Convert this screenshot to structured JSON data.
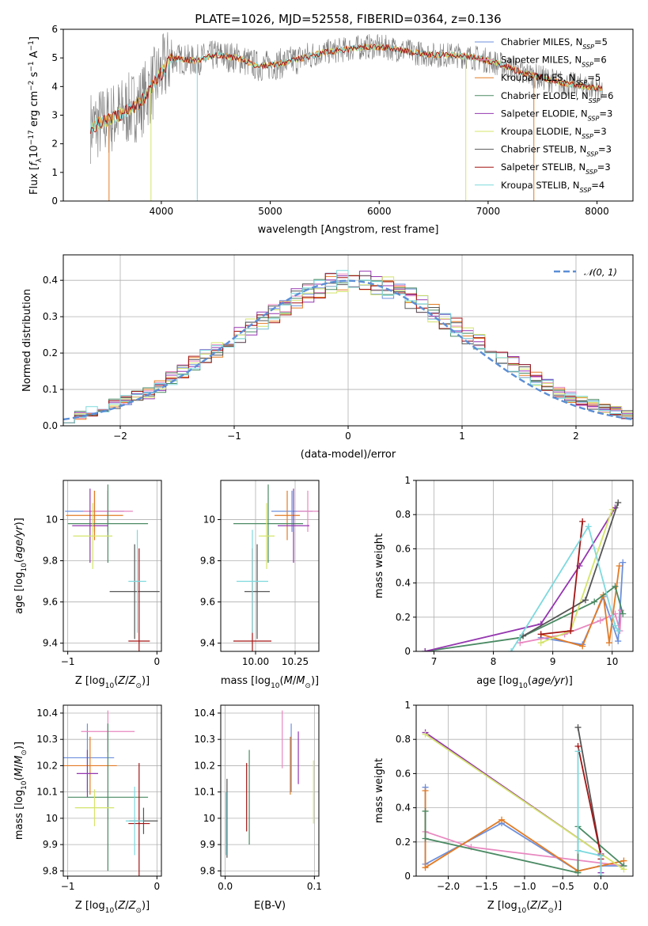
{
  "title": "PLATE=1026, MJD=52558, FIBERID=0364, z=0.136",
  "colors": {
    "chabrier_miles": "#6c8fdc",
    "salpeter_miles": "#e888c0",
    "kroupa_miles": "#e37b24",
    "chabrier_elodie": "#4a8a63",
    "salpeter_elodie": "#9537b0",
    "kroupa_elodie": "#d4e46a",
    "chabrier_stelib": "#555555",
    "salpeter_stelib": "#a31414",
    "kroupa_stelib": "#7dd9de",
    "normal": "#5b8ed6"
  },
  "chart_data": [
    {
      "type": "line",
      "title": "PLATE=1026, MJD=52558, FIBERID=0364, z=0.136",
      "xlabel": "wavelength [Angstrom, rest frame]",
      "ylabel": "Flux [f_λ 10^-17 erg cm^-2 s^-1 A^-1]",
      "xlim": [
        3100,
        8330
      ],
      "ylim": [
        0,
        6
      ],
      "xticks": [
        4000,
        5000,
        6000,
        7000,
        8000
      ],
      "yticks": [
        0,
        1,
        2,
        3,
        4,
        5,
        6
      ],
      "grid": false,
      "legend_position": "right",
      "series": [
        {
          "name": "Chabrier MILES",
          "nssp": "5"
        },
        {
          "name": "Salpeter MILES",
          "nssp": "6"
        },
        {
          "name": "Kroupa MILES",
          "nssp": "5"
        },
        {
          "name": "Chabrier ELODIE",
          "nssp": "6"
        },
        {
          "name": "Salpeter ELODIE",
          "nssp": "3"
        },
        {
          "name": "Kroupa ELODIE",
          "nssp": "3"
        },
        {
          "name": "Chabrier STELIB",
          "nssp": "3"
        },
        {
          "name": "Salpeter STELIB",
          "nssp": "3"
        },
        {
          "name": "Kroupa STELIB",
          "nssp": "4"
        }
      ],
      "continuum": {
        "x": [
          3350,
          3500,
          3650,
          3800,
          3950,
          4100,
          4300,
          4500,
          4700,
          4900,
          5100,
          5300,
          5500,
          5700,
          5900,
          6100,
          6300,
          6500,
          6700,
          6900,
          7100,
          7300,
          7500,
          7700,
          7900,
          8050
        ],
        "y": [
          2.6,
          2.8,
          3.1,
          3.4,
          4.2,
          5.0,
          4.9,
          5.1,
          5.0,
          4.7,
          4.8,
          5.0,
          5.2,
          5.3,
          5.4,
          5.35,
          5.2,
          5.1,
          5.1,
          5.0,
          4.8,
          4.5,
          4.3,
          4.1,
          4.0,
          3.9
        ]
      }
    },
    {
      "type": "line",
      "xlabel": "(data-model)/error",
      "ylabel": "Normed distribution",
      "xlim": [
        -2.5,
        2.5
      ],
      "ylim": [
        0,
        0.47
      ],
      "xticks": [
        -2,
        -1,
        0,
        1,
        2
      ],
      "yticks": [
        0.0,
        0.1,
        0.2,
        0.3,
        0.4
      ],
      "grid": true,
      "legend": "𝒩(0, 1)",
      "legend_position": "top-right",
      "histograms": {
        "bin_width": 0.1,
        "bin_start": -2.5,
        "reference": [
          0.02,
          0.03,
          0.04,
          0.05,
          0.06,
          0.07,
          0.08,
          0.09,
          0.11,
          0.13,
          0.15,
          0.17,
          0.19,
          0.21,
          0.23,
          0.25,
          0.27,
          0.29,
          0.31,
          0.33,
          0.35,
          0.37,
          0.38,
          0.39,
          0.4,
          0.4,
          0.4,
          0.39,
          0.38,
          0.37,
          0.35,
          0.33,
          0.31,
          0.29,
          0.27,
          0.25,
          0.23,
          0.21,
          0.19,
          0.17,
          0.15,
          0.13,
          0.11,
          0.09,
          0.08,
          0.07,
          0.06,
          0.05,
          0.04,
          0.03
        ]
      }
    },
    {
      "type": "scatter",
      "xlabel": "Z [log10(Z/Z⊙)]",
      "ylabel": "age  [log10(age/yr)]",
      "xlim": [
        -1.05,
        0.05
      ],
      "ylim": [
        9.36,
        10.19
      ],
      "xticks": [
        -1,
        0
      ],
      "yticks": [
        9.4,
        9.6,
        9.8,
        10.0
      ],
      "grid": true,
      "points": [
        {
          "key": "chabrier_miles",
          "x": -0.7,
          "y": 10.04,
          "xerr": 0.33,
          "yerr": 0.1
        },
        {
          "key": "salpeter_miles",
          "x": -0.55,
          "y": 10.04,
          "xerr": 0.28,
          "yerr": 0.1
        },
        {
          "key": "kroupa_miles",
          "x": -0.7,
          "y": 10.02,
          "xerr": 0.32,
          "yerr": 0.12
        },
        {
          "key": "chabrier_elodie",
          "x": -0.55,
          "y": 9.98,
          "xerr": 0.45,
          "yerr": 0.19
        },
        {
          "key": "salpeter_elodie",
          "x": -0.75,
          "y": 9.97,
          "xerr": 0.2,
          "yerr": 0.18
        },
        {
          "key": "kroupa_elodie",
          "x": -0.72,
          "y": 9.92,
          "xerr": 0.22,
          "yerr": 0.16
        },
        {
          "key": "chabrier_stelib",
          "x": -0.25,
          "y": 9.65,
          "xerr": 0.28,
          "yerr": 0.23
        },
        {
          "key": "salpeter_stelib",
          "x": -0.2,
          "y": 9.41,
          "xerr": 0.12,
          "yerr": 0.45
        },
        {
          "key": "kroupa_stelib",
          "x": -0.22,
          "y": 9.7,
          "xerr": 0.1,
          "yerr": 0.25
        }
      ]
    },
    {
      "type": "scatter",
      "xlabel": "mass [log10(M/M⊙)]",
      "ylabel": "",
      "xlim": [
        9.78,
        10.4
      ],
      "ylim": [
        9.36,
        10.19
      ],
      "xticks": [
        10.0,
        10.25
      ],
      "xticklabels": [
        "10.00",
        "10.25"
      ],
      "yticks": [
        9.4,
        9.6,
        9.8,
        10.0
      ],
      "grid": true,
      "points": [
        {
          "key": "chabrier_miles",
          "x": 10.23,
          "y": 10.04,
          "xerr": 0.13,
          "yerr": 0.1
        },
        {
          "key": "salpeter_miles",
          "x": 10.33,
          "y": 10.04,
          "xerr": 0.07,
          "yerr": 0.1
        },
        {
          "key": "kroupa_miles",
          "x": 10.2,
          "y": 10.02,
          "xerr": 0.08,
          "yerr": 0.12
        },
        {
          "key": "chabrier_elodie",
          "x": 10.08,
          "y": 9.98,
          "xerr": 0.22,
          "yerr": 0.19
        },
        {
          "key": "salpeter_elodie",
          "x": 10.24,
          "y": 9.97,
          "xerr": 0.1,
          "yerr": 0.18
        },
        {
          "key": "kroupa_elodie",
          "x": 10.07,
          "y": 9.92,
          "xerr": 0.05,
          "yerr": 0.16
        },
        {
          "key": "chabrier_stelib",
          "x": 10.01,
          "y": 9.65,
          "xerr": 0.08,
          "yerr": 0.23
        },
        {
          "key": "salpeter_stelib",
          "x": 9.98,
          "y": 9.41,
          "xerr": 0.12,
          "yerr": 0.45
        },
        {
          "key": "kroupa_stelib",
          "x": 9.98,
          "y": 9.7,
          "xerr": 0.1,
          "yerr": 0.25
        }
      ]
    },
    {
      "type": "line",
      "xlabel": "age  [log10(age/yr)]",
      "ylabel": "mass weight",
      "xlim": [
        6.7,
        10.35
      ],
      "ylim": [
        0,
        1.0
      ],
      "xticks": [
        7,
        8,
        9,
        10
      ],
      "yticks": [
        0.0,
        0.2,
        0.4,
        0.6,
        0.8,
        1.0
      ],
      "grid": true,
      "series": [
        {
          "key": "chabrier_miles",
          "x": [
            8.8,
            9.5,
            9.85,
            10.1,
            10.18
          ],
          "y": [
            0.08,
            0.04,
            0.32,
            0.06,
            0.52
          ]
        },
        {
          "key": "salpeter_miles",
          "x": [
            8.45,
            9.2,
            9.8,
            10.05,
            10.13,
            10.15
          ],
          "y": [
            0.05,
            0.1,
            0.18,
            0.22,
            0.12,
            0.24
          ]
        },
        {
          "key": "kroupa_miles",
          "x": [
            8.8,
            9.5,
            9.85,
            9.95,
            10.12
          ],
          "y": [
            0.1,
            0.03,
            0.33,
            0.05,
            0.5
          ]
        },
        {
          "key": "chabrier_elodie",
          "x": [
            6.85,
            8.45,
            9.7,
            10.05,
            10.18
          ],
          "y": [
            0.0,
            0.08,
            0.29,
            0.38,
            0.22
          ]
        },
        {
          "key": "salpeter_elodie",
          "x": [
            6.85,
            8.8,
            9.45,
            10.05
          ],
          "y": [
            0.0,
            0.16,
            0.5,
            0.84
          ]
        },
        {
          "key": "kroupa_elodie",
          "x": [
            8.8,
            9.3,
            10.0
          ],
          "y": [
            0.05,
            0.12,
            0.83
          ]
        },
        {
          "key": "chabrier_stelib",
          "x": [
            8.5,
            9.55,
            10.1
          ],
          "y": [
            0.09,
            0.3,
            0.87
          ]
        },
        {
          "key": "salpeter_stelib",
          "x": [
            8.8,
            9.3,
            9.5
          ],
          "y": [
            0.1,
            0.12,
            0.76
          ]
        },
        {
          "key": "kroupa_stelib",
          "x": [
            8.3,
            9.6,
            10.05,
            10.1
          ],
          "y": [
            0.0,
            0.73,
            0.15,
            0.12
          ]
        }
      ]
    },
    {
      "type": "scatter",
      "xlabel": "Z [log10(Z/Z⊙)]",
      "ylabel": "mass [log10(M/M⊙)]",
      "xlim": [
        -1.05,
        0.05
      ],
      "ylim": [
        9.78,
        10.43
      ],
      "xticks": [
        -1,
        0
      ],
      "yticks": [
        9.8,
        9.9,
        10.0,
        10.1,
        10.2,
        10.3,
        10.4
      ],
      "grid": true,
      "points": [
        {
          "key": "chabrier_miles",
          "x": -0.78,
          "y": 10.23,
          "xerr": 0.3,
          "yerr": 0.13
        },
        {
          "key": "salpeter_miles",
          "x": -0.55,
          "y": 10.33,
          "xerr": 0.3,
          "yerr": 0.08
        },
        {
          "key": "kroupa_miles",
          "x": -0.75,
          "y": 10.2,
          "xerr": 0.3,
          "yerr": 0.11
        },
        {
          "key": "chabrier_elodie",
          "x": -0.55,
          "y": 10.08,
          "xerr": 0.45,
          "yerr": 0.28
        },
        {
          "key": "salpeter_elodie",
          "x": -0.78,
          "y": 10.17,
          "xerr": 0.12,
          "yerr": 0.09
        },
        {
          "key": "kroupa_elodie",
          "x": -0.7,
          "y": 10.04,
          "xerr": 0.22,
          "yerr": 0.07
        },
        {
          "key": "chabrier_stelib",
          "x": -0.15,
          "y": 9.99,
          "xerr": 0.16,
          "yerr": 0.05
        },
        {
          "key": "salpeter_stelib",
          "x": -0.2,
          "y": 9.98,
          "xerr": 0.12,
          "yerr": 0.23
        },
        {
          "key": "kroupa_stelib",
          "x": -0.25,
          "y": 9.99,
          "xerr": 0.1,
          "yerr": 0.13
        }
      ]
    },
    {
      "type": "scatter",
      "xlabel": "E(B-V)",
      "ylabel": "",
      "xlim": [
        -0.005,
        0.105
      ],
      "ylim": [
        9.78,
        10.43
      ],
      "xticks": [
        0.0,
        0.1
      ],
      "xticklabels": [
        "0.0",
        "0.1"
      ],
      "yticks": [
        9.8,
        9.9,
        10.0,
        10.1,
        10.2,
        10.3,
        10.4
      ],
      "grid": true,
      "points": [
        {
          "key": "chabrier_miles",
          "x": 0.074,
          "y": 10.23,
          "yerr": 0.13
        },
        {
          "key": "salpeter_miles",
          "x": 0.064,
          "y": 10.3,
          "yerr": 0.11
        },
        {
          "key": "kroupa_miles",
          "x": 0.073,
          "y": 10.2,
          "yerr": 0.11
        },
        {
          "key": "chabrier_elodie",
          "x": 0.027,
          "y": 10.08,
          "yerr": 0.18
        },
        {
          "key": "salpeter_elodie",
          "x": 0.082,
          "y": 10.23,
          "yerr": 0.1
        },
        {
          "key": "kroupa_elodie",
          "x": 0.099,
          "y": 10.1,
          "yerr": 0.12
        },
        {
          "key": "chabrier_stelib",
          "x": 0.002,
          "y": 10.0,
          "yerr": 0.15
        },
        {
          "key": "salpeter_stelib",
          "x": 0.024,
          "y": 10.08,
          "yerr": 0.13
        },
        {
          "key": "kroupa_stelib",
          "x": 0.001,
          "y": 9.98,
          "yerr": 0.12
        }
      ]
    },
    {
      "type": "line",
      "xlabel": "Z [log10(Z/Z⊙)]",
      "ylabel": "mass weight",
      "xlim": [
        -2.42,
        0.42
      ],
      "ylim": [
        0,
        1.0
      ],
      "xticks": [
        -2.0,
        -1.5,
        -1.0,
        -0.5,
        0.0
      ],
      "xticklabels": [
        "−2.0",
        "−1.5",
        "−1.0",
        "−0.5",
        "0.0"
      ],
      "yticks": [
        0.0,
        0.2,
        0.4,
        0.6,
        0.8,
        1.0
      ],
      "grid": true,
      "series": [
        {
          "key": "chabrier_miles",
          "x": [
            -2.3,
            -2.3,
            -1.3,
            -0.3,
            0.0,
            0.3
          ],
          "y": [
            0.52,
            0.07,
            0.31,
            0.03,
            0.06,
            0.06
          ]
        },
        {
          "key": "salpeter_miles",
          "x": [
            -2.3,
            -1.7,
            0.3
          ],
          "y": [
            0.26,
            0.17,
            0.06
          ]
        },
        {
          "key": "kroupa_miles",
          "x": [
            -2.3,
            -2.3,
            -1.3,
            -0.3,
            0.3
          ],
          "y": [
            0.5,
            0.05,
            0.33,
            0.03,
            0.09
          ]
        },
        {
          "key": "chabrier_elodie",
          "x": [
            -2.3,
            -2.3,
            -0.3,
            -0.3,
            0.3
          ],
          "y": [
            0.38,
            0.22,
            0.02,
            0.29,
            0.06
          ]
        },
        {
          "key": "salpeter_elodie",
          "x": [
            -2.3,
            0.0,
            0.0
          ],
          "y": [
            0.84,
            0.13,
            0.02
          ]
        },
        {
          "key": "kroupa_elodie",
          "x": [
            -2.3,
            0.3
          ],
          "y": [
            0.83,
            0.04
          ]
        },
        {
          "key": "chabrier_stelib",
          "x": [
            -0.3,
            0.0,
            0.0
          ],
          "y": [
            0.87,
            0.12,
            0.0
          ]
        },
        {
          "key": "salpeter_stelib",
          "x": [
            -0.3,
            0.0,
            0.0
          ],
          "y": [
            0.76,
            0.12,
            0.1
          ]
        },
        {
          "key": "kroupa_stelib",
          "x": [
            -0.3,
            -0.3,
            0.0,
            0.0
          ],
          "y": [
            0.73,
            0.15,
            0.12,
            0.0
          ]
        }
      ]
    }
  ]
}
